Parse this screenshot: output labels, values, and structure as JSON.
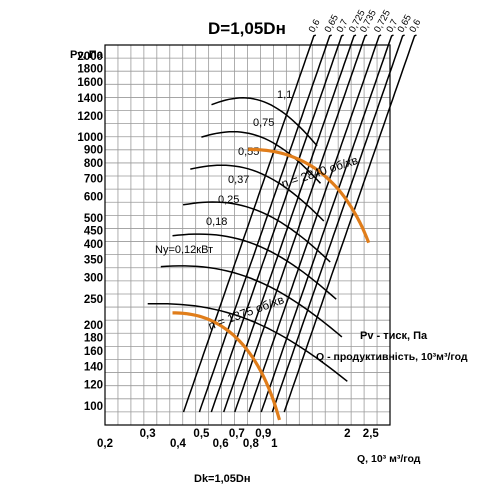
{
  "chart_data": {
    "type": "line",
    "title": "D=1,05Dн",
    "ylabel": "Pv, Па",
    "xlabel": "Q, 10³ м³/год",
    "subtitle_bottom": "Dk=1,05Dн",
    "x_scale": "log",
    "y_scale": "log",
    "grid": true,
    "yticks": [
      "2000",
      "1800",
      "1600",
      "1400",
      "1200",
      "1000",
      "900",
      "800",
      "700",
      "600",
      "500",
      "450",
      "400",
      "350",
      "300",
      "250",
      "200",
      "180",
      "160",
      "140",
      "120",
      "100"
    ],
    "xticks": [
      "0,2",
      "0,3",
      "0,4",
      "0,5",
      "0,6",
      "0,7",
      "0,8",
      "0,9",
      "1",
      "2",
      "2,5"
    ],
    "legend_lines": [
      "Pv - тиск, Па",
      "Q - продуктивність, 10³м³/год"
    ],
    "power_lines_label_prefix": "Ny=0,12кВт",
    "power_lines": [
      "1,1",
      "0,75",
      "0,55",
      "0,37",
      "0,25",
      "0,18",
      "Ny=0,12кВт"
    ],
    "efficiency_labels_top": [
      "0,6",
      "0,65",
      "0,7",
      "0,725",
      "0,735",
      "0,725",
      "0,7",
      "0,65",
      "0,6"
    ],
    "speed_curves": [
      {
        "name": "n = 2840 об/хв",
        "rpm": 2840
      },
      {
        "name": "n = 1375 об/хв",
        "rpm": 1375
      }
    ],
    "efficiency_lines": [
      {
        "label": "0,6",
        "q_at_100": 0.43
      },
      {
        "label": "0,65",
        "q_at_100": 0.5
      },
      {
        "label": "0,7",
        "q_at_100": 0.56
      },
      {
        "label": "0,725",
        "q_at_100": 0.63
      },
      {
        "label": "0,735",
        "q_at_100": 0.7
      },
      {
        "label": "0,725",
        "q_at_100": 0.8
      },
      {
        "label": "0,7",
        "q_at_100": 0.9
      },
      {
        "label": "0,65",
        "q_at_100": 1.0
      },
      {
        "label": "0,6",
        "q_at_100": 1.12
      }
    ]
  }
}
